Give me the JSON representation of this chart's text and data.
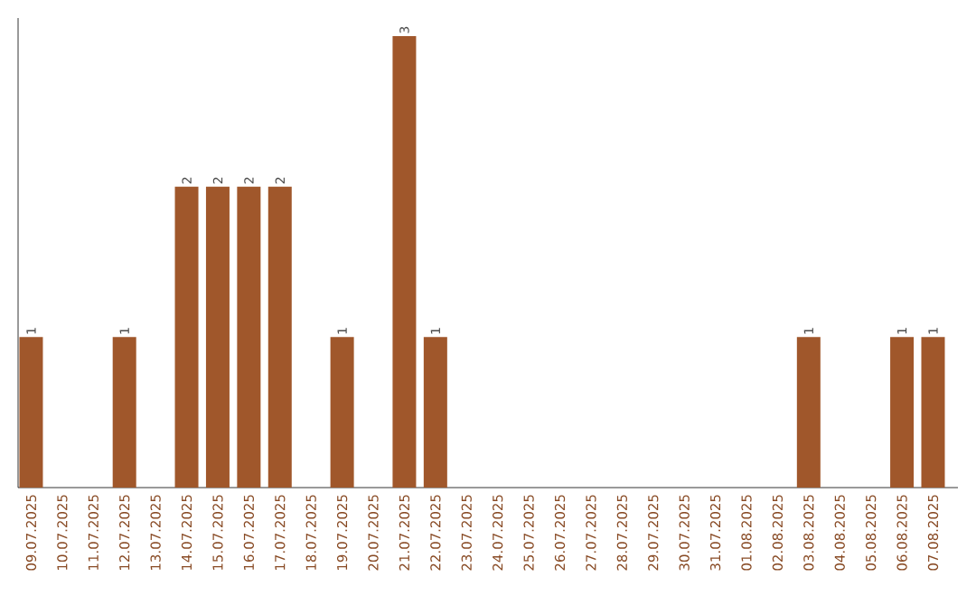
{
  "chart_data": {
    "type": "bar",
    "categories": [
      "09.07.2025",
      "10.07.2025",
      "11.07.2025",
      "12.07.2025",
      "13.07.2025",
      "14.07.2025",
      "15.07.2025",
      "16.07.2025",
      "17.07.2025",
      "18.07.2025",
      "19.07.2025",
      "20.07.2025",
      "21.07.2025",
      "22.07.2025",
      "23.07.2025",
      "24.07.2025",
      "25.07.2025",
      "26.07.2025",
      "27.07.2025",
      "28.07.2025",
      "29.07.2025",
      "30.07.2025",
      "31.07.2025",
      "01.08.2025",
      "02.08.2025",
      "03.08.2025",
      "04.08.2025",
      "05.08.2025",
      "06.08.2025",
      "07.08.2025"
    ],
    "values": [
      1,
      0,
      0,
      1,
      0,
      2,
      2,
      2,
      2,
      0,
      1,
      0,
      3,
      1,
      0,
      0,
      0,
      0,
      0,
      0,
      0,
      0,
      0,
      0,
      0,
      1,
      0,
      0,
      1,
      1
    ],
    "value_labels": [
      "1",
      null,
      null,
      "1",
      null,
      "2",
      "2",
      "2",
      "2",
      null,
      "1",
      null,
      "3",
      "1",
      null,
      null,
      null,
      null,
      null,
      null,
      null,
      null,
      null,
      null,
      null,
      "1",
      null,
      null,
      "1",
      "1"
    ],
    "color": "#a0572b"
  }
}
